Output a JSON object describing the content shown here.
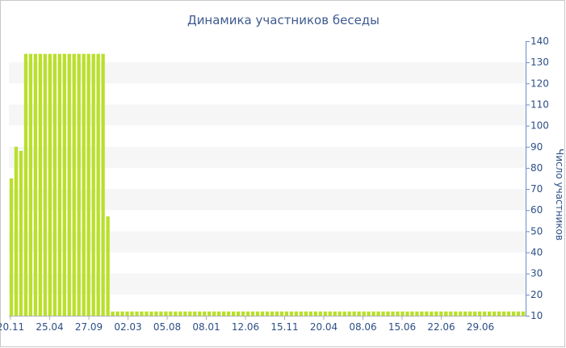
{
  "chart_data": {
    "type": "bar",
    "title": "Динамика участников беседы",
    "xlabel": "",
    "ylabel": "Число участников",
    "ylim": [
      10,
      140
    ],
    "y_ticks": [
      10,
      20,
      30,
      40,
      50,
      60,
      70,
      80,
      90,
      100,
      110,
      120,
      130,
      140
    ],
    "y_axis_position": "right",
    "x_tick_labels": [
      "20.11",
      "25.04",
      "27.09",
      "02.03",
      "05.08",
      "08.01",
      "12.06",
      "15.11",
      "20.04",
      "08.06",
      "15.06",
      "22.06",
      "29.06"
    ],
    "grid": "horizontal bands",
    "bar_color": "#b9e02a",
    "values": [
      75,
      90,
      88,
      134,
      134,
      134,
      134,
      134,
      134,
      134,
      134,
      134,
      134,
      134,
      134,
      134,
      134,
      134,
      134,
      134,
      57,
      12,
      12,
      12,
      12,
      12,
      12,
      12,
      12,
      12,
      12,
      12,
      12,
      12,
      12,
      12,
      12,
      12,
      12,
      12,
      12,
      12,
      12,
      12,
      12,
      12,
      12,
      12,
      12,
      12,
      12,
      12,
      12,
      12,
      12,
      12,
      12,
      12,
      12,
      12,
      12,
      12,
      12,
      12,
      12,
      12,
      12,
      12,
      12,
      12,
      12,
      12,
      12,
      12,
      12,
      12,
      12,
      12,
      12,
      12,
      12,
      12,
      12,
      12,
      12,
      12,
      12,
      12,
      12,
      12,
      12,
      12,
      12,
      12,
      12,
      12,
      12,
      12,
      12,
      12,
      12,
      12,
      12,
      12,
      12,
      12,
      12
    ]
  }
}
